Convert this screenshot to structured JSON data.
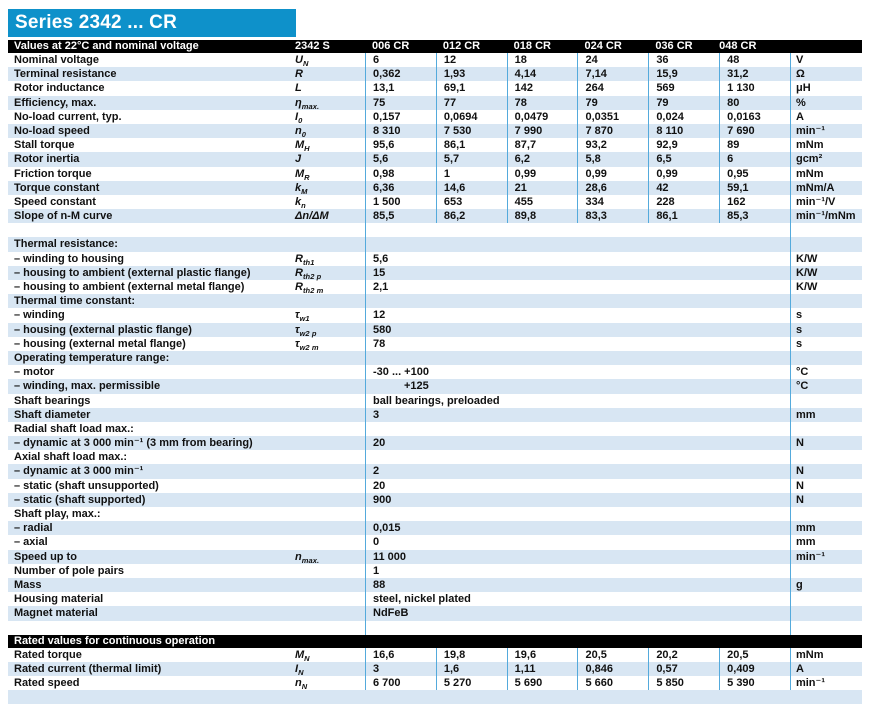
{
  "title": "Series 2342 ... CR",
  "colors": {
    "accent_blue": "#0e91ca",
    "stripe_blue": "#d8e6f3",
    "grid_line_blue": "#54aadc",
    "section_bar": "#000000"
  },
  "s1": {
    "header": "Values at 22°C and nominal voltage",
    "model": "2342 S",
    "columns": [
      "006 CR",
      "012 CR",
      "018 CR",
      "024 CR",
      "036 CR",
      "048 CR"
    ],
    "rows": [
      {
        "label": "Nominal voltage",
        "sym": "U",
        "sub": "N",
        "values": [
          "6",
          "12",
          "18",
          "24",
          "36",
          "48"
        ],
        "unit": "V"
      },
      {
        "label": "Terminal resistance",
        "sym": "R",
        "values": [
          "0,362",
          "1,93",
          "4,14",
          "7,14",
          "15,9",
          "31,2"
        ],
        "unit": "Ω"
      },
      {
        "label": "Rotor inductance",
        "sym": "L",
        "values": [
          "13,1",
          "69,1",
          "142",
          "264",
          "569",
          "1 130"
        ],
        "unit": "μH"
      },
      {
        "label": "Efficiency, max.",
        "sym": "η",
        "sub": "max.",
        "values": [
          "75",
          "77",
          "78",
          "79",
          "79",
          "80"
        ],
        "unit": "%"
      },
      {
        "label": "No-load current, typ.",
        "sym": "I",
        "sub": "0",
        "values": [
          "0,157",
          "0,0694",
          "0,0479",
          "0,0351",
          "0,024",
          "0,0163"
        ],
        "unit": "A"
      },
      {
        "label": "No-load speed",
        "sym": "n",
        "sub": "0",
        "values": [
          "8 310",
          "7 530",
          "7 990",
          "7 870",
          "8 110",
          "7 690"
        ],
        "unit": "min⁻¹"
      },
      {
        "label": "Stall torque",
        "sym": "M",
        "sub": "H",
        "values": [
          "95,6",
          "86,1",
          "87,7",
          "93,2",
          "92,9",
          "89"
        ],
        "unit": "mNm"
      },
      {
        "label": "Rotor inertia",
        "sym": "J",
        "values": [
          "5,6",
          "5,7",
          "6,2",
          "5,8",
          "6,5",
          "6"
        ],
        "unit": "gcm²"
      },
      {
        "label": "Friction torque",
        "sym": "M",
        "sub": "R",
        "values": [
          "0,98",
          "1",
          "0,99",
          "0,99",
          "0,99",
          "0,95"
        ],
        "unit": "mNm"
      },
      {
        "label": "Torque constant",
        "sym": "k",
        "sub": "M",
        "values": [
          "6,36",
          "14,6",
          "21",
          "28,6",
          "42",
          "59,1"
        ],
        "unit": "mNm/A"
      },
      {
        "label": "Speed constant",
        "sym": "k",
        "sub": "n",
        "values": [
          "1 500",
          "653",
          "455",
          "334",
          "228",
          "162"
        ],
        "unit": "min⁻¹/V"
      },
      {
        "label": "Slope of n-M curve",
        "sym": "Δn/ΔM",
        "values": [
          "85,5",
          "86,2",
          "89,8",
          "83,3",
          "86,1",
          "85,3"
        ],
        "unit": "min⁻¹/mNm"
      }
    ]
  },
  "s2": {
    "rows": [
      {},
      {
        "label": "Thermal resistance:"
      },
      {
        "label": "– winding to housing",
        "sym": "R",
        "sub": "th1",
        "value": "5,6",
        "unit": "K/W"
      },
      {
        "label": "– housing to ambient (external plastic flange)",
        "sym": "R",
        "sub": "th2 p",
        "value": "15",
        "unit": "K/W"
      },
      {
        "label": "– housing to ambient (external metal flange)",
        "sym": "R",
        "sub": "th2 m",
        "value": "2,1",
        "unit": "K/W"
      },
      {
        "label": "Thermal time constant:"
      },
      {
        "label": "– winding",
        "sym": "τ",
        "sub": "w1",
        "value": "12",
        "unit": "s"
      },
      {
        "label": "– housing (external plastic flange)",
        "sym": "τ",
        "sub": "w2 p",
        "value": "580",
        "unit": "s"
      },
      {
        "label": "– housing (external metal flange)",
        "sym": "τ",
        "sub": "w2 m",
        "value": "78",
        "unit": "s"
      },
      {
        "label": "Operating temperature range:"
      },
      {
        "label": "– motor",
        "value": "-30  ... +100",
        "unit": "°C"
      },
      {
        "label": "– winding, max. permissible",
        "value": "+125",
        "unit": "°C",
        "vindent": true
      },
      {
        "label": "Shaft bearings",
        "value": "ball bearings, preloaded"
      },
      {
        "label": "Shaft diameter",
        "value": "3",
        "unit": "mm"
      },
      {
        "label": "Radial shaft load max.:"
      },
      {
        "label": "– dynamic at 3 000 min⁻¹ (3 mm from bearing)",
        "value": "20",
        "unit": "N"
      },
      {
        "label": "Axial shaft load max.:"
      },
      {
        "label": "– dynamic at 3 000 min⁻¹",
        "value": "2",
        "unit": "N"
      },
      {
        "label": "– static (shaft unsupported)",
        "value": "20",
        "unit": "N"
      },
      {
        "label": "– static (shaft supported)",
        "value": "900",
        "unit": "N"
      },
      {
        "label": "Shaft play, max.:"
      },
      {
        "label": "– radial",
        "value": "0,015",
        "unit": "mm"
      },
      {
        "label": "– axial",
        "value": "0",
        "unit": "mm"
      },
      {
        "label": "Speed up to",
        "sym": "n",
        "sub": "max.",
        "value": "11 000",
        "unit": "min⁻¹"
      },
      {
        "label": "Number of pole pairs",
        "value": "1"
      },
      {
        "label": "Mass",
        "value": "88",
        "unit": "g"
      },
      {
        "label": "Housing material",
        "value": "steel, nickel plated"
      },
      {
        "label": "Magnet material",
        "value": "NdFeB"
      },
      {}
    ]
  },
  "s3": {
    "header": "Rated values for continuous operation",
    "rows": [
      {
        "label": "Rated torque",
        "sym": "M",
        "sub": "N",
        "values": [
          "16,6",
          "19,8",
          "19,6",
          "20,5",
          "20,2",
          "20,5"
        ],
        "unit": "mNm"
      },
      {
        "label": "Rated current (thermal limit)",
        "sym": "I",
        "sub": "N",
        "values": [
          "3",
          "1,6",
          "1,11",
          "0,846",
          "0,57",
          "0,409"
        ],
        "unit": "A"
      },
      {
        "label": "Rated speed",
        "sym": "n",
        "sub": "N",
        "values": [
          "6 700",
          "5 270",
          "5 690",
          "5 660",
          "5 850",
          "5 390"
        ],
        "unit": "min⁻¹"
      }
    ]
  }
}
